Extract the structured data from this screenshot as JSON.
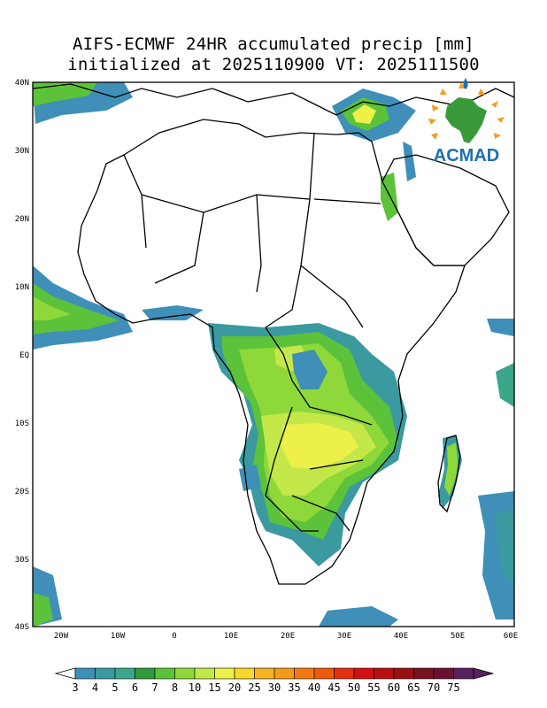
{
  "title": {
    "line1": "AIFS-ECMWF 24HR accumulated precip [mm]",
    "line2": "initialized at 2025110900 VT: 2025111500"
  },
  "logo": {
    "text": "ACMAD",
    "icon": "africa-sun-logo"
  },
  "map": {
    "lon_range": [
      -25,
      60
    ],
    "lat_range": [
      -40,
      40
    ],
    "lat_ticks": [
      "40N",
      "30N",
      "20N",
      "10N",
      "EQ",
      "10S",
      "20S",
      "30S",
      "40S"
    ],
    "lon_ticks": [
      "20W",
      "10W",
      "0",
      "10E",
      "20E",
      "30E",
      "40E",
      "50E",
      "60E"
    ]
  },
  "colorbar": {
    "labels": [
      "3",
      "4",
      "5",
      "6",
      "7",
      "8",
      "10",
      "15",
      "20",
      "25",
      "30",
      "35",
      "40",
      "45",
      "50",
      "55",
      "60",
      "65",
      "70",
      "75"
    ],
    "colors": [
      "#3f8fb8",
      "#3a9aa0",
      "#3aa68a",
      "#2f9a3a",
      "#5cc23a",
      "#8fd83a",
      "#c4e84a",
      "#eef04a",
      "#f5d82a",
      "#f5b520",
      "#f59a18",
      "#f27a10",
      "#ee5a0c",
      "#e43010",
      "#d21010",
      "#b81010",
      "#9a1010",
      "#7a1020",
      "#6a1030",
      "#5a2060"
    ]
  },
  "colors": {
    "coast": "#000000",
    "precip_light": "#3f8fb8",
    "precip_mid": "#5cc23a",
    "precip_high": "#eef04a"
  }
}
